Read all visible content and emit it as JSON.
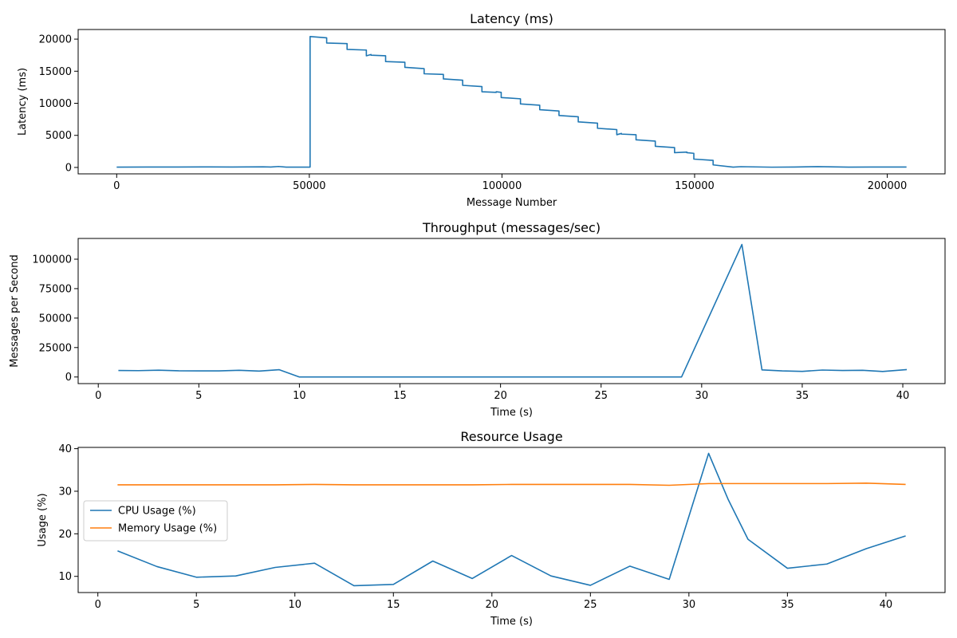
{
  "chart_data": [
    {
      "type": "line",
      "title": "Latency (ms)",
      "xlabel": "Message Number",
      "ylabel": "Latency (ms)",
      "xlim": [
        -10000,
        215000
      ],
      "ylim": [
        -1000,
        21500
      ],
      "xticks": [
        0,
        50000,
        100000,
        150000,
        200000
      ],
      "xtick_labels": [
        "0",
        "50000",
        "100000",
        "150000",
        "200000"
      ],
      "yticks": [
        0,
        5000,
        10000,
        15000,
        20000
      ],
      "ytick_labels": [
        "0",
        "5000",
        "10000",
        "15000",
        "20000"
      ],
      "grid": false,
      "series": [
        {
          "color": "#1f77b4",
          "x": [
            0,
            8000,
            16000,
            24000,
            30000,
            38000,
            40000,
            42000,
            44000,
            50200,
            50200,
            54500,
            54500,
            59800,
            59800,
            64800,
            64800,
            66000,
            66000,
            69800,
            69800,
            74800,
            74800,
            79800,
            79800,
            84800,
            84800,
            89800,
            89800,
            94800,
            94800,
            98500,
            98500,
            99800,
            99800,
            104800,
            104800,
            109800,
            109800,
            114800,
            114800,
            119800,
            119800,
            124800,
            124800,
            129800,
            129800,
            131000,
            131000,
            134800,
            134800,
            139800,
            139800,
            144800,
            144800,
            148000,
            148000,
            149800,
            149800,
            154800,
            154800,
            160000,
            162000,
            170000,
            176000,
            182000,
            190000,
            196000,
            205000
          ],
          "y": [
            50,
            70,
            60,
            80,
            70,
            90,
            60,
            150,
            50,
            50,
            20400,
            20200,
            19400,
            19300,
            18400,
            18300,
            17400,
            17600,
            17500,
            17400,
            16500,
            16400,
            15600,
            15400,
            14600,
            14500,
            13800,
            13600,
            12800,
            12600,
            11800,
            11700,
            11800,
            11700,
            10900,
            10700,
            9900,
            9700,
            9000,
            8800,
            8100,
            7900,
            7100,
            6900,
            6100,
            5900,
            5100,
            5300,
            5200,
            5100,
            4300,
            4100,
            3300,
            3100,
            2300,
            2400,
            2300,
            2200,
            1300,
            1100,
            400,
            50,
            120,
            40,
            60,
            130,
            50,
            70,
            60
          ]
        }
      ]
    },
    {
      "type": "line",
      "title": "Throughput (messages/sec)",
      "xlabel": "Time (s)",
      "ylabel": "Messages per Second",
      "xlim": [
        -1,
        42.1
      ],
      "ylim": [
        -5600,
        117600
      ],
      "xticks": [
        0,
        5,
        10,
        15,
        20,
        25,
        30,
        35,
        40
      ],
      "xtick_labels": [
        "0",
        "5",
        "10",
        "15",
        "20",
        "25",
        "30",
        "35",
        "40"
      ],
      "yticks": [
        0,
        25000,
        50000,
        75000,
        100000
      ],
      "ytick_labels": [
        "0",
        "25000",
        "50000",
        "75000",
        "100000"
      ],
      "grid": false,
      "series": [
        {
          "color": "#1f77b4",
          "x": [
            1,
            2,
            3,
            4,
            5,
            6,
            7,
            8,
            9,
            10,
            11,
            12,
            13,
            14,
            15,
            16,
            17,
            18,
            19,
            20,
            21,
            22,
            23,
            24,
            25,
            26,
            27,
            28,
            29,
            32,
            33,
            34,
            35,
            36,
            37,
            38,
            39,
            40.2
          ],
          "y": [
            5500,
            5400,
            5800,
            5300,
            5200,
            5200,
            5700,
            5000,
            6200,
            0,
            0,
            0,
            0,
            0,
            0,
            0,
            0,
            0,
            0,
            0,
            0,
            0,
            0,
            0,
            0,
            0,
            0,
            0,
            0,
            112500,
            6000,
            5200,
            4800,
            5900,
            5500,
            5700,
            4700,
            6300
          ]
        }
      ]
    },
    {
      "type": "line",
      "title": "Resource Usage",
      "xlabel": "Time (s)",
      "ylabel": "Usage (%)",
      "xlim": [
        -1,
        43
      ],
      "ylim": [
        6.2,
        40.3
      ],
      "xticks": [
        0,
        5,
        10,
        15,
        20,
        25,
        30,
        35,
        40
      ],
      "xtick_labels": [
        "0",
        "5",
        "10",
        "15",
        "20",
        "25",
        "30",
        "35",
        "40"
      ],
      "yticks": [
        10,
        20,
        30,
        40
      ],
      "ytick_labels": [
        "10",
        "20",
        "30",
        "40"
      ],
      "grid": false,
      "legend_position": "center-left",
      "series": [
        {
          "name": "CPU Usage (%)",
          "color": "#1f77b4",
          "x": [
            1,
            3,
            5,
            7,
            9,
            11,
            13,
            15,
            17,
            19,
            21,
            23,
            25,
            27,
            29,
            31,
            32,
            33,
            35,
            37,
            39,
            41
          ],
          "y": [
            16,
            12.3,
            9.8,
            10.1,
            12.1,
            13.1,
            7.8,
            8.1,
            13.6,
            9.5,
            14.9,
            10.1,
            7.9,
            12.4,
            9.3,
            38.9,
            28,
            18.7,
            11.9,
            12.9,
            16.5,
            19.5
          ]
        },
        {
          "name": "Memory Usage (%)",
          "color": "#ff7f0e",
          "x": [
            1,
            3,
            5,
            7,
            9,
            11,
            13,
            15,
            17,
            19,
            21,
            23,
            25,
            27,
            29,
            31,
            33,
            35,
            37,
            39,
            41
          ],
          "y": [
            31.5,
            31.5,
            31.5,
            31.5,
            31.5,
            31.6,
            31.5,
            31.5,
            31.5,
            31.5,
            31.6,
            31.6,
            31.6,
            31.6,
            31.4,
            31.8,
            31.8,
            31.8,
            31.8,
            31.9,
            31.6
          ]
        }
      ]
    }
  ]
}
